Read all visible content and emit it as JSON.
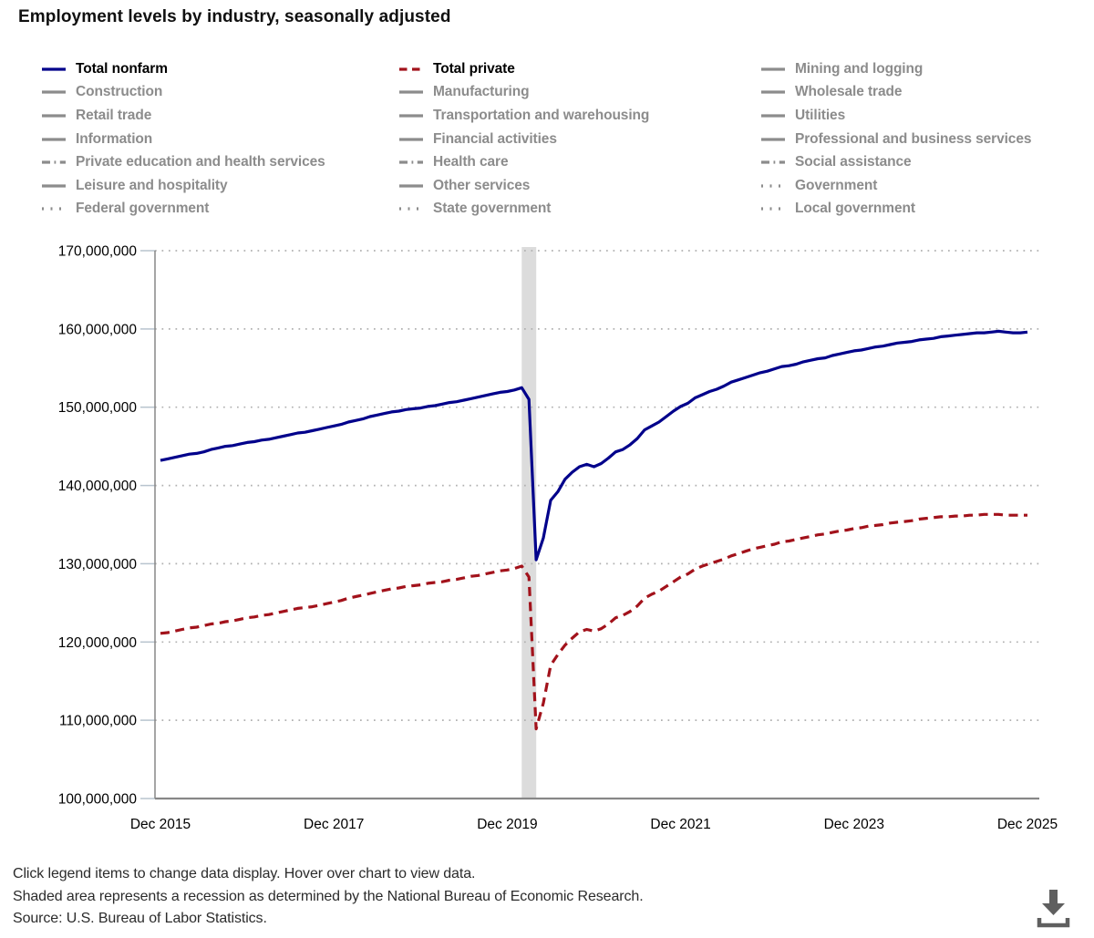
{
  "title": "Employment levels by industry, seasonally adjusted",
  "legend": {
    "columns": [
      {
        "items": [
          {
            "label": "Total nonfarm",
            "color": "#00008b",
            "line_style": "solid",
            "active": true
          },
          {
            "label": "Construction",
            "color": "#8c8c8c",
            "line_style": "solid",
            "active": false
          },
          {
            "label": "Retail trade",
            "color": "#8c8c8c",
            "line_style": "solid",
            "active": false
          },
          {
            "label": "Information",
            "color": "#8c8c8c",
            "line_style": "solid",
            "active": false
          },
          {
            "label": "Private education and health services",
            "color": "#8c8c8c",
            "line_style": "dashdot",
            "active": false
          },
          {
            "label": "Leisure and hospitality",
            "color": "#8c8c8c",
            "line_style": "solid",
            "active": false
          },
          {
            "label": "Federal government",
            "color": "#8c8c8c",
            "line_style": "dotted",
            "active": false
          }
        ]
      },
      {
        "items": [
          {
            "label": "Total private",
            "color": "#a2121b",
            "line_style": "dashed",
            "active": true
          },
          {
            "label": "Manufacturing",
            "color": "#8c8c8c",
            "line_style": "solid",
            "active": false
          },
          {
            "label": "Transportation and warehousing",
            "color": "#8c8c8c",
            "line_style": "solid",
            "active": false
          },
          {
            "label": "Financial activities",
            "color": "#8c8c8c",
            "line_style": "solid",
            "active": false
          },
          {
            "label": "Health care",
            "color": "#8c8c8c",
            "line_style": "dashdot",
            "active": false
          },
          {
            "label": "Other services",
            "color": "#8c8c8c",
            "line_style": "solid",
            "active": false
          },
          {
            "label": "State government",
            "color": "#8c8c8c",
            "line_style": "dotted",
            "active": false
          }
        ]
      },
      {
        "items": [
          {
            "label": "Mining and logging",
            "color": "#8c8c8c",
            "line_style": "solid",
            "active": false
          },
          {
            "label": "Wholesale trade",
            "color": "#8c8c8c",
            "line_style": "solid",
            "active": false
          },
          {
            "label": "Utilities",
            "color": "#8c8c8c",
            "line_style": "solid",
            "active": false
          },
          {
            "label": "Professional and business services",
            "color": "#8c8c8c",
            "line_style": "solid",
            "active": false
          },
          {
            "label": "Social assistance",
            "color": "#8c8c8c",
            "line_style": "dashdot",
            "active": false
          },
          {
            "label": "Government",
            "color": "#8c8c8c",
            "line_style": "dotted",
            "active": false
          },
          {
            "label": "Local government",
            "color": "#8c8c8c",
            "line_style": "dotted",
            "active": false
          }
        ]
      }
    ]
  },
  "chart_data": {
    "type": "line",
    "title": "Employment levels by industry, seasonally adjusted",
    "xlabel": "",
    "ylabel": "",
    "unit": "persons",
    "x_start": "Dec 2015",
    "x_end": "Dec 2025",
    "x_step_months": 1,
    "x_tick_labels": [
      "Dec 2015",
      "Dec 2017",
      "Dec 2019",
      "Dec 2021",
      "Dec 2023",
      "Dec 2025"
    ],
    "y_tick_labels": [
      "100,000,000",
      "110,000,000",
      "120,000,000",
      "130,000,000",
      "140,000,000",
      "150,000,000",
      "160,000,000",
      "170,000,000"
    ],
    "ylim_millions": [
      100,
      170
    ],
    "grid": "dotted-horizontal",
    "legend_position": "top",
    "recession_band": {
      "from_month_index": 50,
      "to_month_index": 52,
      "from": "Feb 2020",
      "to": "Apr 2020",
      "color": "#dcdcdc"
    },
    "series": [
      {
        "name": "Total nonfarm",
        "color": "#00008b",
        "style": "solid",
        "values_millions": [
          143.2,
          143.4,
          143.6,
          143.8,
          144.0,
          144.1,
          144.3,
          144.6,
          144.8,
          145.0,
          145.1,
          145.3,
          145.5,
          145.6,
          145.8,
          145.9,
          146.1,
          146.3,
          146.5,
          146.7,
          146.8,
          147.0,
          147.2,
          147.4,
          147.6,
          147.8,
          148.1,
          148.3,
          148.5,
          148.8,
          149.0,
          149.2,
          149.4,
          149.5,
          149.7,
          149.8,
          149.9,
          150.1,
          150.2,
          150.4,
          150.6,
          150.7,
          150.9,
          151.1,
          151.3,
          151.5,
          151.7,
          151.9,
          152.0,
          152.2,
          152.5,
          151.0,
          130.5,
          133.3,
          138.1,
          139.2,
          140.8,
          141.7,
          142.4,
          142.7,
          142.4,
          142.8,
          143.5,
          144.3,
          144.6,
          145.2,
          146.0,
          147.1,
          147.6,
          148.1,
          148.8,
          149.5,
          150.1,
          150.5,
          151.2,
          151.6,
          152.0,
          152.3,
          152.7,
          153.2,
          153.5,
          153.8,
          154.1,
          154.4,
          154.6,
          154.9,
          155.2,
          155.3,
          155.5,
          155.8,
          156.0,
          156.2,
          156.3,
          156.6,
          156.8,
          157.0,
          157.2,
          157.3,
          157.5,
          157.7,
          157.8,
          158.0,
          158.2,
          158.3,
          158.4,
          158.6,
          158.7,
          158.8,
          159.0,
          159.1,
          159.2,
          159.3,
          159.4,
          159.5,
          159.5,
          159.6,
          159.7,
          159.6,
          159.5,
          159.5,
          159.6
        ]
      },
      {
        "name": "Total private",
        "color": "#a2121b",
        "style": "dashed",
        "values_millions": [
          121.1,
          121.2,
          121.4,
          121.6,
          121.8,
          121.9,
          122.1,
          122.3,
          122.4,
          122.6,
          122.7,
          122.9,
          123.1,
          123.2,
          123.4,
          123.5,
          123.7,
          123.9,
          124.1,
          124.3,
          124.4,
          124.5,
          124.7,
          124.9,
          125.1,
          125.3,
          125.6,
          125.8,
          126.0,
          126.2,
          126.4,
          126.6,
          126.8,
          126.9,
          127.1,
          127.2,
          127.3,
          127.5,
          127.6,
          127.7,
          127.9,
          128.0,
          128.2,
          128.4,
          128.5,
          128.7,
          128.9,
          129.1,
          129.2,
          129.4,
          129.7,
          128.3,
          108.9,
          112.2,
          117.0,
          118.4,
          119.6,
          120.5,
          121.3,
          121.6,
          121.4,
          121.7,
          122.3,
          123.1,
          123.4,
          123.9,
          124.6,
          125.6,
          126.1,
          126.5,
          127.1,
          127.7,
          128.3,
          128.7,
          129.3,
          129.7,
          130.0,
          130.3,
          130.6,
          131.0,
          131.3,
          131.6,
          131.9,
          132.1,
          132.3,
          132.5,
          132.8,
          132.9,
          133.1,
          133.3,
          133.5,
          133.7,
          133.8,
          134.0,
          134.2,
          134.3,
          134.5,
          134.6,
          134.8,
          134.9,
          135.0,
          135.2,
          135.3,
          135.4,
          135.5,
          135.7,
          135.8,
          135.9,
          136.0,
          136.0,
          136.1,
          136.1,
          136.2,
          136.2,
          136.3,
          136.3,
          136.3,
          136.2,
          136.2,
          136.2,
          136.2
        ]
      }
    ]
  },
  "footer": {
    "lines": [
      "Click legend items to change data display. Hover over chart to view data.",
      "Shaded area represents a recession as determined by the National Bureau of Economic Research.",
      "Source: U.S. Bureau of Labor Statistics."
    ]
  },
  "colors": {
    "total_nonfarm": "#00008b",
    "total_private": "#a2121b",
    "inactive_legend": "#8c8c8c",
    "recession_band": "#dcdcdc",
    "gridline": "#b0b0b0",
    "axis": "#878787",
    "axis_tick": "#b8c4ce",
    "download_icon": "#5f5f5f"
  }
}
